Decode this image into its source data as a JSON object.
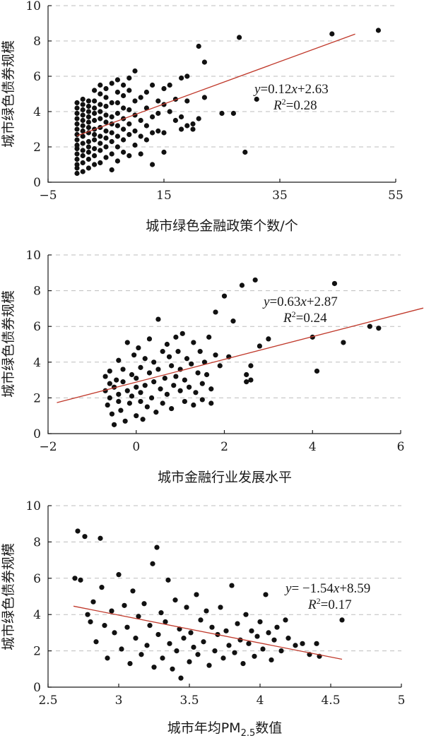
{
  "chart_data": [
    {
      "type": "scatter",
      "xlabel": "城市绿色金融政策个数/个",
      "ylabel": "城市绿色债券规模",
      "xlim": [
        -5,
        55
      ],
      "ylim": [
        0,
        10
      ],
      "xticks": [
        "−5",
        "15",
        "35",
        "55"
      ],
      "yticks": [
        "0",
        "2",
        "4",
        "6",
        "8",
        "10"
      ],
      "grid": "horizontal-dashed",
      "fit": {
        "slope": 0.12,
        "intercept": 2.63,
        "x_range": [
          0,
          48
        ]
      },
      "equation": {
        "y": "y",
        "eq_rest": "=0.12",
        "x": "x",
        "tail": "+2.63",
        "r_letter": "R",
        "r_sup": "2",
        "r_rest": "=0.28"
      },
      "points": [
        [
          0,
          0.5
        ],
        [
          0,
          0.8
        ],
        [
          0,
          1.0
        ],
        [
          0,
          1.3
        ],
        [
          0,
          1.6
        ],
        [
          0,
          1.9
        ],
        [
          0,
          2.1
        ],
        [
          0,
          2.4
        ],
        [
          0,
          2.7
        ],
        [
          0,
          3.0
        ],
        [
          0,
          3.3
        ],
        [
          0,
          3.6
        ],
        [
          0,
          3.9
        ],
        [
          0,
          4.2
        ],
        [
          0,
          4.5
        ],
        [
          1,
          0.6
        ],
        [
          1,
          1.1
        ],
        [
          1,
          1.5
        ],
        [
          1,
          1.8
        ],
        [
          1,
          2.2
        ],
        [
          1,
          2.6
        ],
        [
          1,
          2.9
        ],
        [
          1,
          3.2
        ],
        [
          1,
          3.5
        ],
        [
          1,
          3.8
        ],
        [
          1,
          4.1
        ],
        [
          1,
          4.4
        ],
        [
          1,
          4.7
        ],
        [
          2,
          0.8
        ],
        [
          2,
          1.3
        ],
        [
          2,
          1.7
        ],
        [
          2,
          2.0
        ],
        [
          2,
          2.3
        ],
        [
          2,
          2.8
        ],
        [
          2,
          3.1
        ],
        [
          2,
          3.4
        ],
        [
          2,
          3.7
        ],
        [
          2,
          4.0
        ],
        [
          2,
          4.3
        ],
        [
          2,
          4.6
        ],
        [
          3,
          1.0
        ],
        [
          3,
          1.5
        ],
        [
          3,
          1.9
        ],
        [
          3,
          2.4
        ],
        [
          3,
          2.7
        ],
        [
          3,
          3.0
        ],
        [
          3,
          3.5
        ],
        [
          3,
          3.9
        ],
        [
          3,
          4.2
        ],
        [
          3,
          4.6
        ],
        [
          3,
          5.2
        ],
        [
          4,
          1.1
        ],
        [
          4,
          1.8
        ],
        [
          4,
          2.2
        ],
        [
          4,
          2.6
        ],
        [
          4,
          3.1
        ],
        [
          4,
          3.6
        ],
        [
          4,
          4.0
        ],
        [
          4,
          4.4
        ],
        [
          4,
          5.0
        ],
        [
          4,
          5.5
        ],
        [
          5,
          1.4
        ],
        [
          5,
          2.0
        ],
        [
          5,
          2.5
        ],
        [
          5,
          2.9
        ],
        [
          5,
          3.4
        ],
        [
          5,
          3.8
        ],
        [
          5,
          4.3
        ],
        [
          5,
          4.8
        ],
        [
          5,
          5.3
        ],
        [
          6,
          0.7
        ],
        [
          6,
          1.6
        ],
        [
          6,
          2.3
        ],
        [
          6,
          2.8
        ],
        [
          6,
          3.3
        ],
        [
          6,
          3.7
        ],
        [
          6,
          4.5
        ],
        [
          6,
          5.6
        ],
        [
          7,
          1.2
        ],
        [
          7,
          2.0
        ],
        [
          7,
          2.6
        ],
        [
          7,
          3.2
        ],
        [
          7,
          3.9
        ],
        [
          7,
          4.5
        ],
        [
          7,
          5.1
        ],
        [
          7,
          5.8
        ],
        [
          8,
          1.7
        ],
        [
          8,
          2.4
        ],
        [
          8,
          3.0
        ],
        [
          8,
          3.6
        ],
        [
          8,
          4.2
        ],
        [
          8,
          4.9
        ],
        [
          8,
          5.5
        ],
        [
          9,
          1.5
        ],
        [
          9,
          2.7
        ],
        [
          9,
          3.3
        ],
        [
          9,
          4.1
        ],
        [
          9,
          5.2
        ],
        [
          9,
          5.9
        ],
        [
          10,
          2.1
        ],
        [
          10,
          2.9
        ],
        [
          10,
          3.8
        ],
        [
          10,
          4.6
        ],
        [
          10,
          6.3
        ],
        [
          11,
          1.6
        ],
        [
          11,
          2.6
        ],
        [
          11,
          3.5
        ],
        [
          11,
          4.8
        ],
        [
          12,
          2.4
        ],
        [
          12,
          3.2
        ],
        [
          12,
          4.2
        ],
        [
          12,
          5.1
        ],
        [
          13,
          1.0
        ],
        [
          13,
          2.8
        ],
        [
          13,
          3.7
        ],
        [
          13,
          5.5
        ],
        [
          14,
          2.9
        ],
        [
          14,
          3.9
        ],
        [
          14,
          4.6
        ],
        [
          15,
          1.7
        ],
        [
          15,
          2.8
        ],
        [
          15,
          4.4
        ],
        [
          15,
          5.3
        ],
        [
          16,
          4.0
        ],
        [
          16,
          5.5
        ],
        [
          17,
          3.5
        ],
        [
          17,
          4.7
        ],
        [
          18,
          3.0
        ],
        [
          18,
          3.7
        ],
        [
          18,
          5.9
        ],
        [
          19,
          4.6
        ],
        [
          19,
          3.2
        ],
        [
          19,
          6.0
        ],
        [
          20,
          3.0
        ],
        [
          20,
          3.3
        ],
        [
          21,
          3.6
        ],
        [
          21,
          7.7
        ],
        [
          22,
          4.8
        ],
        [
          22,
          6.8
        ],
        [
          25,
          3.9
        ],
        [
          27,
          3.9
        ],
        [
          28,
          8.2
        ],
        [
          29,
          1.7
        ],
        [
          31,
          4.7
        ],
        [
          44,
          8.4
        ],
        [
          52,
          8.6
        ]
      ]
    },
    {
      "type": "scatter",
      "xlabel": "城市金融行业发展水平",
      "ylabel": "城市绿色债券规模",
      "xlim": [
        -2,
        6
      ],
      "ylim": [
        0,
        10
      ],
      "xticks": [
        "−2",
        "0",
        "2",
        "4",
        "6"
      ],
      "yticks": [
        "0",
        "2",
        "4",
        "6",
        "8",
        "10"
      ],
      "grid": "horizontal-dashed",
      "fit": {
        "slope": 0.63,
        "intercept": 2.87,
        "x_range": [
          -1.8,
          6.6
        ]
      },
      "equation": {
        "y": "y",
        "eq_rest": "=0.63",
        "x": "x",
        "tail": "+2.87",
        "r_letter": "R",
        "r_sup": "2",
        "r_rest": "=0.24"
      },
      "points": [
        [
          -0.7,
          2.4
        ],
        [
          -0.7,
          3.2
        ],
        [
          -0.65,
          1.6
        ],
        [
          -0.6,
          2.0
        ],
        [
          -0.6,
          2.8
        ],
        [
          -0.6,
          3.5
        ],
        [
          -0.55,
          1.1
        ],
        [
          -0.5,
          2.6
        ],
        [
          -0.5,
          0.5
        ],
        [
          -0.45,
          3.0
        ],
        [
          -0.4,
          1.8
        ],
        [
          -0.4,
          2.2
        ],
        [
          -0.4,
          4.1
        ],
        [
          -0.35,
          1.3
        ],
        [
          -0.3,
          2.9
        ],
        [
          -0.3,
          3.6
        ],
        [
          -0.25,
          0.7
        ],
        [
          -0.2,
          2.4
        ],
        [
          -0.2,
          5.1
        ],
        [
          -0.15,
          1.7
        ],
        [
          -0.1,
          3.3
        ],
        [
          -0.1,
          2.1
        ],
        [
          -0.05,
          4.4
        ],
        [
          0.0,
          1.0
        ],
        [
          0.0,
          2.6
        ],
        [
          0.0,
          3.1
        ],
        [
          0.05,
          4.8
        ],
        [
          0.1,
          1.8
        ],
        [
          0.1,
          2.3
        ],
        [
          0.1,
          3.7
        ],
        [
          0.15,
          0.8
        ],
        [
          0.2,
          2.7
        ],
        [
          0.2,
          4.2
        ],
        [
          0.25,
          1.5
        ],
        [
          0.3,
          3.4
        ],
        [
          0.3,
          5.3
        ],
        [
          0.35,
          2.0
        ],
        [
          0.4,
          2.9
        ],
        [
          0.4,
          4.0
        ],
        [
          0.45,
          1.2
        ],
        [
          0.5,
          3.6
        ],
        [
          0.5,
          6.4
        ],
        [
          0.55,
          2.5
        ],
        [
          0.6,
          4.6
        ],
        [
          0.6,
          1.7
        ],
        [
          0.65,
          3.1
        ],
        [
          0.7,
          5.0
        ],
        [
          0.7,
          2.2
        ],
        [
          0.75,
          4.3
        ],
        [
          0.8,
          3.8
        ],
        [
          0.8,
          1.4
        ],
        [
          0.85,
          2.7
        ],
        [
          0.9,
          5.4
        ],
        [
          0.9,
          3.2
        ],
        [
          0.95,
          4.6
        ],
        [
          1.0,
          2.4
        ],
        [
          1.0,
          3.6
        ],
        [
          1.05,
          5.6
        ],
        [
          1.1,
          1.8
        ],
        [
          1.1,
          3.0
        ],
        [
          1.15,
          4.2
        ],
        [
          1.2,
          2.6
        ],
        [
          1.25,
          3.9
        ],
        [
          1.3,
          1.6
        ],
        [
          1.3,
          5.1
        ],
        [
          1.35,
          2.3
        ],
        [
          1.4,
          3.4
        ],
        [
          1.45,
          4.6
        ],
        [
          1.5,
          1.9
        ],
        [
          1.5,
          2.8
        ],
        [
          1.55,
          4.0
        ],
        [
          1.6,
          3.3
        ],
        [
          1.65,
          5.4
        ],
        [
          1.7,
          2.5
        ],
        [
          1.7,
          1.7
        ],
        [
          1.8,
          4.4
        ],
        [
          1.8,
          6.8
        ],
        [
          1.9,
          3.8
        ],
        [
          2.0,
          7.7
        ],
        [
          2.1,
          4.3
        ],
        [
          2.2,
          6.3
        ],
        [
          2.4,
          8.3
        ],
        [
          2.5,
          3.3
        ],
        [
          2.5,
          2.9
        ],
        [
          2.6,
          3.8
        ],
        [
          2.6,
          3.0
        ],
        [
          2.7,
          8.6
        ],
        [
          2.8,
          4.9
        ],
        [
          3.0,
          5.3
        ],
        [
          4.0,
          5.4
        ],
        [
          4.1,
          3.5
        ],
        [
          4.5,
          8.4
        ],
        [
          4.7,
          5.1
        ],
        [
          5.3,
          6.0
        ],
        [
          5.5,
          5.9
        ]
      ]
    },
    {
      "type": "scatter",
      "xlabel": "城市年均PM2.5数值",
      "xlabel_parts": {
        "pre": "城市年均PM",
        "sub": "2.5",
        "post": "数值"
      },
      "ylabel": "城市绿色债券规模",
      "xlim": [
        2.5,
        5
      ],
      "ylim": [
        0,
        10
      ],
      "xticks": [
        "2.5",
        "3",
        "3.5",
        "4",
        "4.5",
        "5"
      ],
      "yticks": [
        "0",
        "2",
        "4",
        "6",
        "8",
        "10"
      ],
      "grid": "horizontal-dashed",
      "fit": {
        "slope": -1.54,
        "intercept": 8.59,
        "x_range": [
          2.68,
          4.58
        ]
      },
      "equation": {
        "y": "y",
        "eq_rest": "= −1.54",
        "x": "x",
        "tail": "+8.59",
        "r_letter": "R",
        "r_sup": "2",
        "r_rest": "=0.17"
      },
      "points": [
        [
          2.69,
          6.0
        ],
        [
          2.71,
          8.6
        ],
        [
          2.73,
          5.9
        ],
        [
          2.76,
          8.3
        ],
        [
          2.78,
          4.0
        ],
        [
          2.8,
          3.6
        ],
        [
          2.82,
          4.7
        ],
        [
          2.84,
          2.5
        ],
        [
          2.87,
          8.2
        ],
        [
          2.88,
          5.5
        ],
        [
          2.9,
          3.4
        ],
        [
          2.92,
          1.6
        ],
        [
          2.95,
          4.2
        ],
        [
          2.97,
          3.0
        ],
        [
          3.0,
          6.2
        ],
        [
          3.02,
          2.1
        ],
        [
          3.04,
          4.5
        ],
        [
          3.06,
          3.3
        ],
        [
          3.08,
          1.3
        ],
        [
          3.1,
          5.3
        ],
        [
          3.12,
          2.7
        ],
        [
          3.14,
          3.9
        ],
        [
          3.16,
          1.8
        ],
        [
          3.18,
          4.6
        ],
        [
          3.2,
          2.3
        ],
        [
          3.22,
          3.4
        ],
        [
          3.24,
          6.8
        ],
        [
          3.25,
          1.1
        ],
        [
          3.27,
          7.7
        ],
        [
          3.28,
          2.9
        ],
        [
          3.3,
          4.1
        ],
        [
          3.31,
          1.6
        ],
        [
          3.33,
          3.6
        ],
        [
          3.35,
          5.9
        ],
        [
          3.36,
          2.4
        ],
        [
          3.38,
          1.0
        ],
        [
          3.4,
          4.8
        ],
        [
          3.41,
          2.0
        ],
        [
          3.43,
          3.2
        ],
        [
          3.44,
          0.5
        ],
        [
          3.46,
          2.7
        ],
        [
          3.48,
          4.4
        ],
        [
          3.5,
          1.4
        ],
        [
          3.51,
          3.0
        ],
        [
          3.53,
          2.2
        ],
        [
          3.55,
          5.1
        ],
        [
          3.56,
          1.8
        ],
        [
          3.58,
          3.7
        ],
        [
          3.6,
          2.5
        ],
        [
          3.62,
          4.2
        ],
        [
          3.64,
          1.2
        ],
        [
          3.66,
          3.3
        ],
        [
          3.68,
          2.0
        ],
        [
          3.7,
          2.9
        ],
        [
          3.72,
          4.4
        ],
        [
          3.74,
          1.6
        ],
        [
          3.76,
          3.1
        ],
        [
          3.78,
          2.3
        ],
        [
          3.8,
          5.6
        ],
        [
          3.82,
          1.9
        ],
        [
          3.84,
          3.5
        ],
        [
          3.86,
          2.6
        ],
        [
          3.88,
          1.3
        ],
        [
          3.9,
          4.0
        ],
        [
          3.92,
          2.4
        ],
        [
          3.94,
          3.1
        ],
        [
          3.96,
          1.7
        ],
        [
          3.98,
          2.8
        ],
        [
          4.0,
          3.6
        ],
        [
          4.02,
          2.1
        ],
        [
          4.04,
          5.1
        ],
        [
          4.06,
          3.0
        ],
        [
          4.08,
          1.5
        ],
        [
          4.1,
          2.6
        ],
        [
          4.12,
          3.3
        ],
        [
          4.15,
          2.0
        ],
        [
          4.18,
          3.7
        ],
        [
          4.2,
          2.7
        ],
        [
          4.25,
          2.3
        ],
        [
          4.3,
          2.4
        ],
        [
          4.35,
          1.8
        ],
        [
          4.4,
          2.4
        ],
        [
          4.42,
          1.7
        ],
        [
          4.58,
          3.7
        ]
      ]
    }
  ]
}
